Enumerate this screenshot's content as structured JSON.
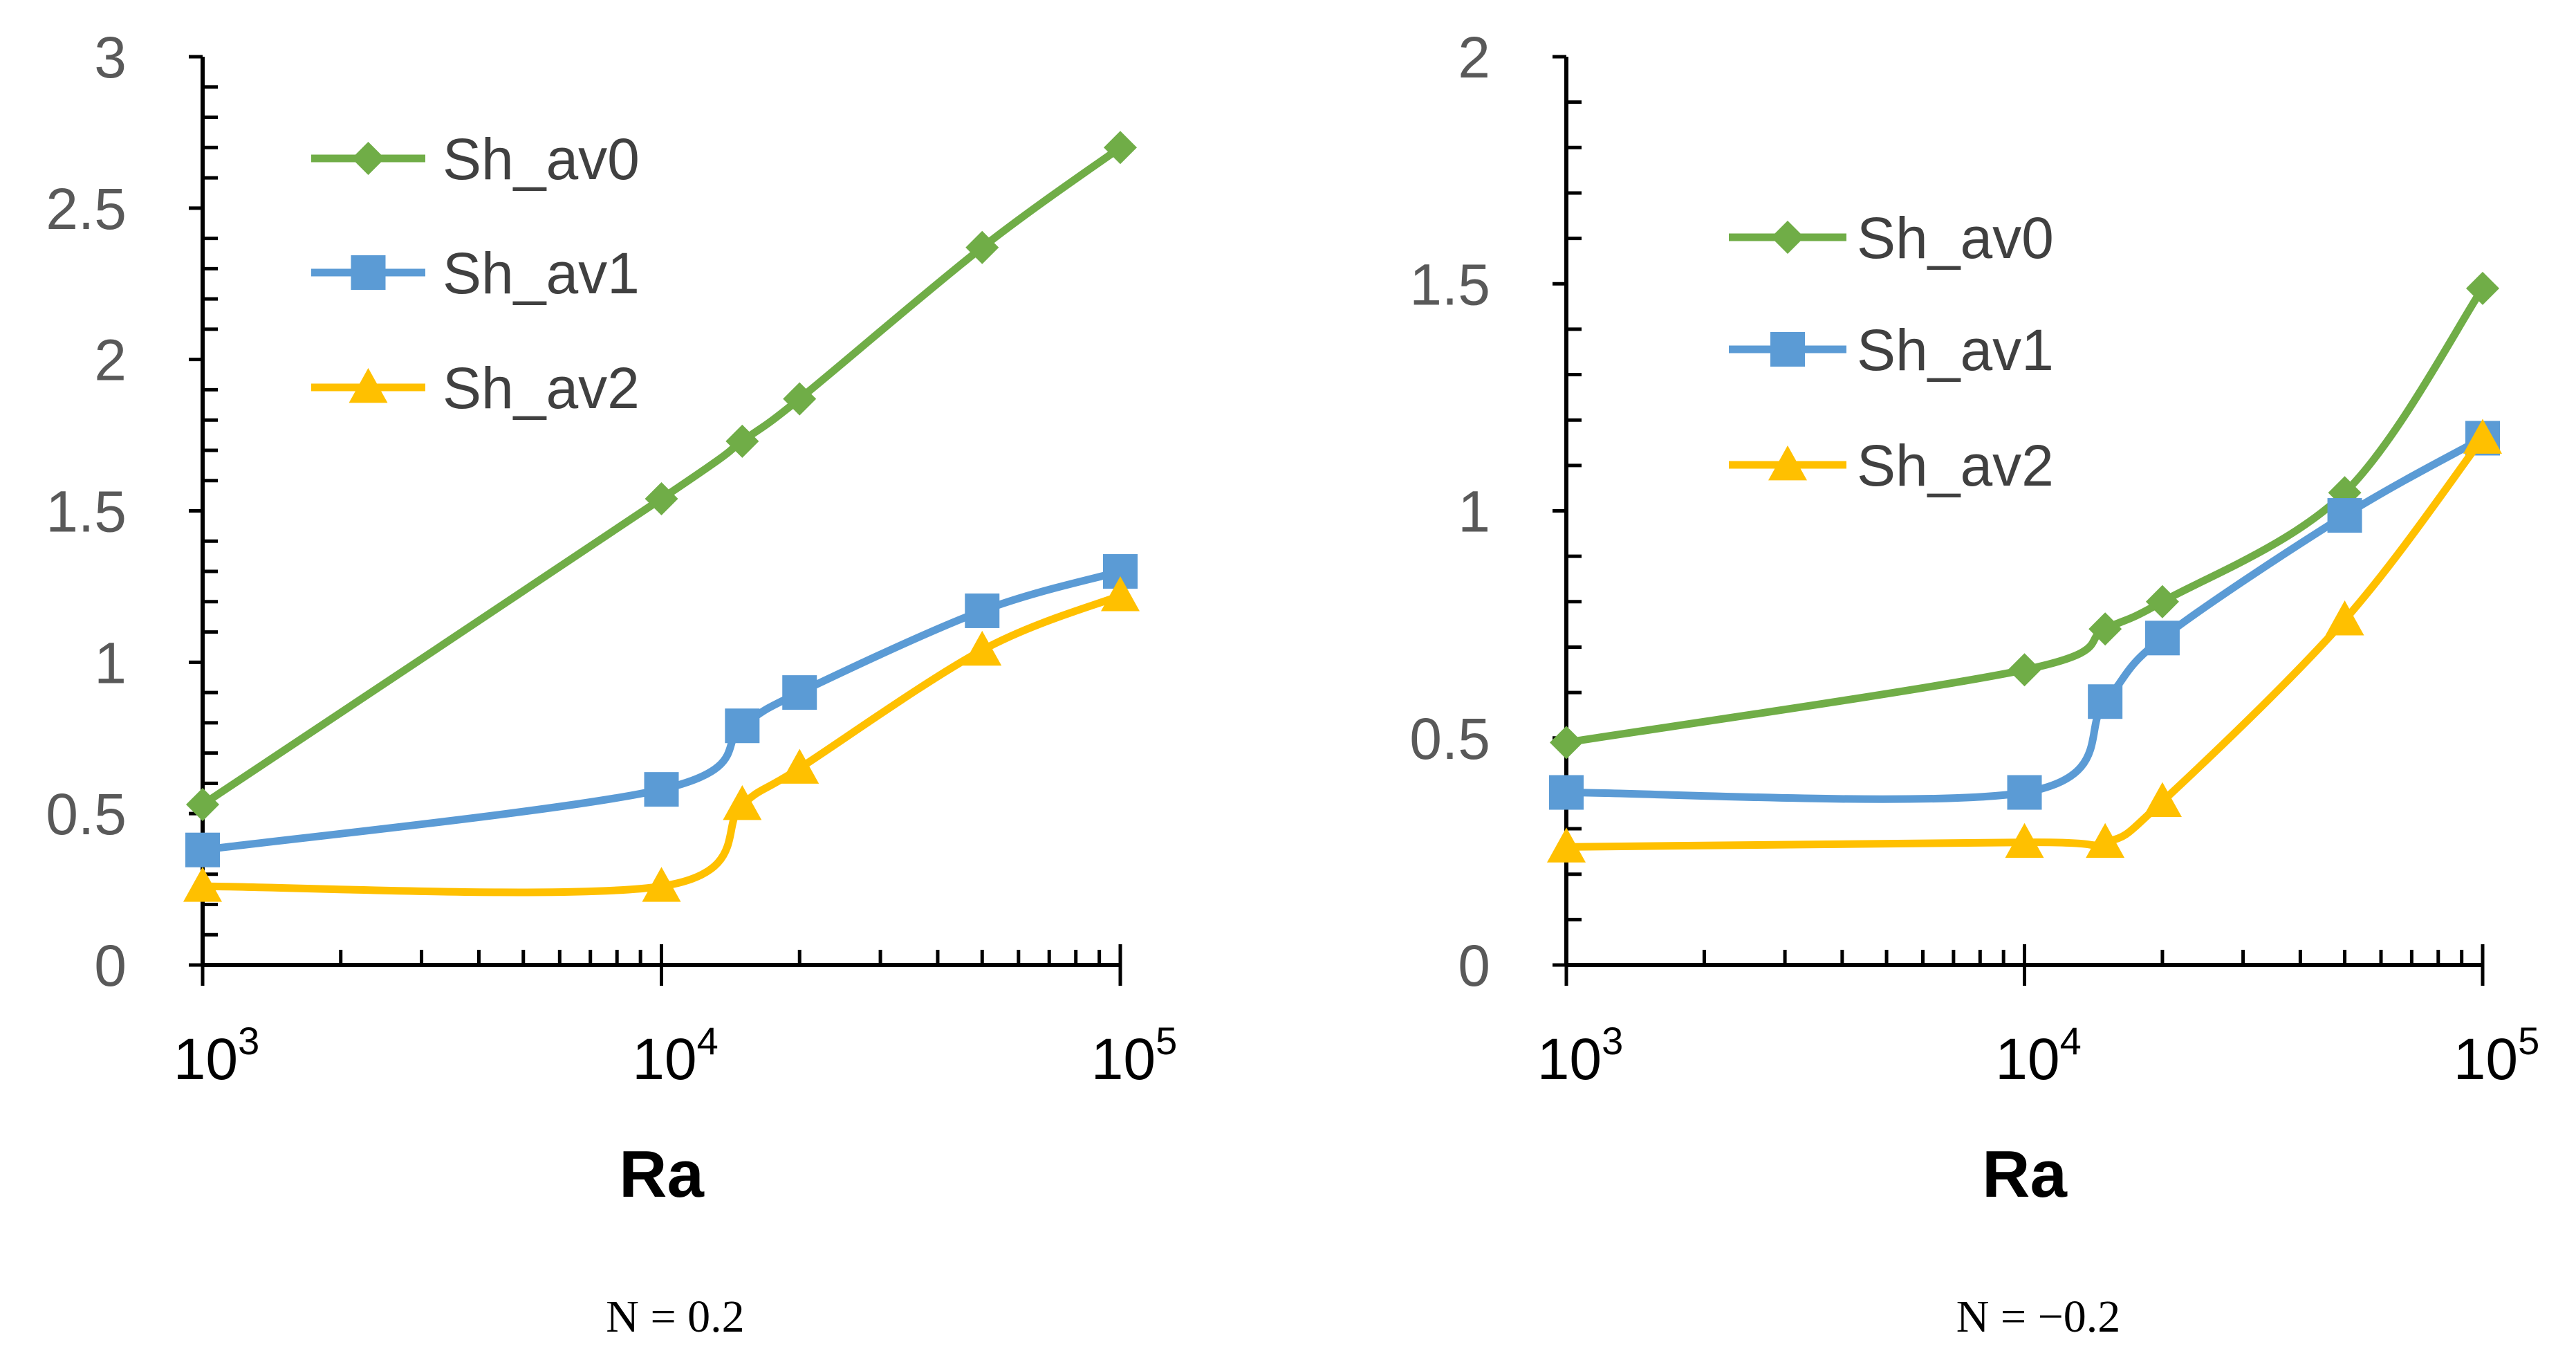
{
  "chart_data": [
    {
      "type": "line",
      "caption": "N = 0.2",
      "xlabel": "Ra",
      "ylabel": "",
      "xscale": "log",
      "xlim": [
        1000,
        100000
      ],
      "ylim": [
        0,
        3
      ],
      "yticks": [
        "0",
        "0.5",
        "1",
        "1.5",
        "2",
        "2.5",
        "3"
      ],
      "xticks": [
        {
          "base": "10",
          "exp": "3"
        },
        {
          "base": "10",
          "exp": "4"
        },
        {
          "base": "10",
          "exp": "5"
        }
      ],
      "grid": false,
      "legend_position": "top-left",
      "x": [
        1000,
        10000,
        15000,
        20000,
        50000,
        100000
      ],
      "series": [
        {
          "name": "Sh_av0",
          "marker": "diamond",
          "color": "#70AD47",
          "values": [
            0.53,
            1.54,
            1.73,
            1.87,
            2.37,
            2.7
          ]
        },
        {
          "name": "Sh_av1",
          "marker": "square",
          "color": "#5B9BD5",
          "values": [
            0.38,
            0.58,
            0.79,
            0.9,
            1.17,
            1.3
          ]
        },
        {
          "name": "Sh_av2",
          "marker": "triangle",
          "color": "#FFC000",
          "values": [
            0.26,
            0.26,
            0.53,
            0.65,
            1.04,
            1.22
          ]
        }
      ]
    },
    {
      "type": "line",
      "caption": "N = −0.2",
      "xlabel": "Ra",
      "ylabel": "",
      "xscale": "log",
      "xlim": [
        1000,
        100000
      ],
      "ylim": [
        0,
        2
      ],
      "yticks": [
        "0",
        "0.5",
        "1",
        "1.5",
        "2"
      ],
      "xticks": [
        {
          "base": "10",
          "exp": "3"
        },
        {
          "base": "10",
          "exp": "4"
        },
        {
          "base": "10",
          "exp": "5"
        }
      ],
      "grid": false,
      "legend_position": "top-left",
      "x": [
        1000,
        10000,
        15000,
        20000,
        50000,
        100000
      ],
      "series": [
        {
          "name": "Sh_av0",
          "marker": "diamond",
          "color": "#70AD47",
          "values": [
            0.49,
            0.65,
            0.74,
            0.8,
            1.04,
            1.49
          ]
        },
        {
          "name": "Sh_av1",
          "marker": "square",
          "color": "#5B9BD5",
          "values": [
            0.38,
            0.38,
            0.58,
            0.72,
            0.99,
            1.16
          ]
        },
        {
          "name": "Sh_av2",
          "marker": "triangle",
          "color": "#FFC000",
          "values": [
            0.26,
            0.27,
            0.27,
            0.36,
            0.76,
            1.16
          ]
        }
      ]
    }
  ]
}
